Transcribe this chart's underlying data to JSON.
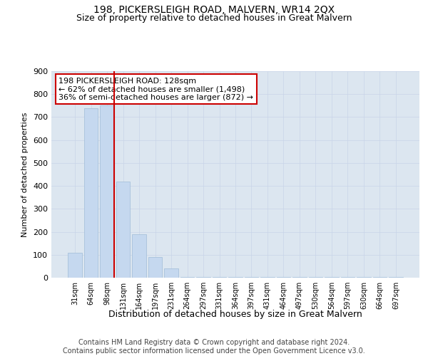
{
  "title": "198, PICKERSLEIGH ROAD, MALVERN, WR14 2QX",
  "subtitle": "Size of property relative to detached houses in Great Malvern",
  "xlabel": "Distribution of detached houses by size in Great Malvern",
  "ylabel": "Number of detached properties",
  "categories": [
    "31sqm",
    "64sqm",
    "98sqm",
    "131sqm",
    "164sqm",
    "197sqm",
    "231sqm",
    "264sqm",
    "297sqm",
    "331sqm",
    "364sqm",
    "397sqm",
    "431sqm",
    "464sqm",
    "497sqm",
    "530sqm",
    "564sqm",
    "597sqm",
    "630sqm",
    "664sqm",
    "697sqm"
  ],
  "values": [
    110,
    740,
    750,
    420,
    190,
    90,
    40,
    2,
    2,
    2,
    2,
    2,
    2,
    2,
    2,
    2,
    2,
    2,
    2,
    2,
    2
  ],
  "bar_color": "#c5d8ef",
  "bar_edge_color": "#a0bcd8",
  "vline_x_index": 2,
  "vline_color": "#cc0000",
  "annotation_text": "198 PICKERSLEIGH ROAD: 128sqm\n← 62% of detached houses are smaller (1,498)\n36% of semi-detached houses are larger (872) →",
  "annotation_box_color": "#ffffff",
  "annotation_box_edge_color": "#cc0000",
  "ylim": [
    0,
    900
  ],
  "yticks": [
    0,
    100,
    200,
    300,
    400,
    500,
    600,
    700,
    800,
    900
  ],
  "grid_color": "#c8d4e8",
  "bg_color": "#dce6f0",
  "title_fontsize": 10,
  "subtitle_fontsize": 9,
  "footer_text": "Contains HM Land Registry data © Crown copyright and database right 2024.\nContains public sector information licensed under the Open Government Licence v3.0.",
  "footer_fontsize": 7,
  "annotation_fontsize": 8
}
